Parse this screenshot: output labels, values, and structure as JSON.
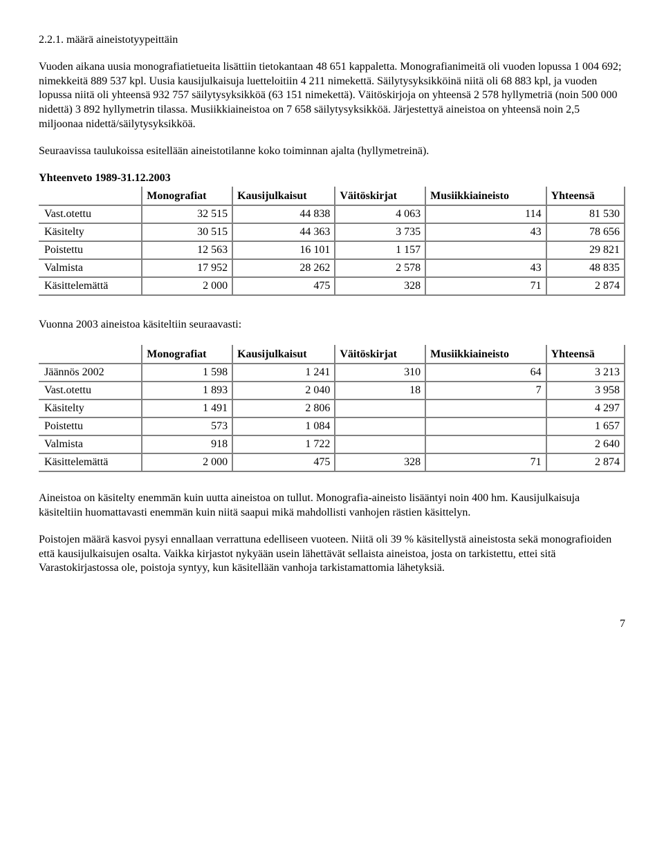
{
  "heading": "2.2.1. määrä aineistotyypeittäin",
  "para1": "Vuoden aikana uusia monografiatietueita lisättiin tietokantaan 48 651 kappaletta. Monografianimeitä oli vuoden lopussa 1 004 692; nimekkeitä 889 537 kpl. Uusia kausijulkaisuja luetteloitiin 4 211 nimekettä. Säilytysyksikköinä niitä oli 68 883 kpl, ja vuoden lopussa niitä oli yhteensä 932 757 säilytysyksikköä (63 151 nimekettä). Väitöskirjoja on yhteensä 2 578 hyllymetriä (noin 500 000 nidettä)  3 892 hyllymetrin tilassa. Musiikkiaineistoa on 7 658 säilytysyksikköä. Järjestettyä aineistoa on yhteensä noin 2,5 miljoonaa nidettä/säilytysyksikköä.",
  "para2": "Seuraavissa taulukoissa esitellään aineistotilanne koko toiminnan ajalta (hyllymetreinä).",
  "table1_title": "Yhteenveto 1989-31.12.2003",
  "headers": {
    "blank": "",
    "c1": "Monografiat",
    "c2": "Kausijulkaisut",
    "c3": "Väitöskirjat",
    "c4": "Musiikkiaineisto",
    "c5": "Yhteensä"
  },
  "table1": [
    {
      "label": "Vast.otettu",
      "v": [
        "32 515",
        "44 838",
        "4 063",
        "114",
        "81 530"
      ]
    },
    {
      "label": "Käsitelty",
      "v": [
        "30 515",
        "44 363",
        "3 735",
        "43",
        "78 656"
      ]
    },
    {
      "label": "Poistettu",
      "v": [
        "12 563",
        "16 101",
        "1 157",
        "",
        "29 821"
      ]
    },
    {
      "label": "Valmista",
      "v": [
        "17 952",
        "28 262",
        "2 578",
        "43",
        "48 835"
      ]
    },
    {
      "label": "Käsittelemättä",
      "v": [
        "2 000",
        "475",
        "328",
        "71",
        "2 874"
      ]
    }
  ],
  "para3": "Vuonna 2003 aineistoa käsiteltiin seuraavasti:",
  "table2": [
    {
      "label": "Jäännös 2002",
      "v": [
        "1 598",
        "1 241",
        "310",
        "64",
        "3 213"
      ]
    },
    {
      "label": "Vast.otettu",
      "v": [
        "1 893",
        "2 040",
        "18",
        "7",
        "3 958"
      ]
    },
    {
      "label": "Käsitelty",
      "v": [
        "1 491",
        "2 806",
        "",
        "",
        "4 297"
      ]
    },
    {
      "label": "Poistettu",
      "v": [
        "573",
        "1 084",
        "",
        "",
        "1 657"
      ]
    },
    {
      "label": "Valmista",
      "v": [
        "918",
        "1 722",
        "",
        "",
        "2 640"
      ]
    },
    {
      "label": "Käsittelemättä",
      "v": [
        "2 000",
        "475",
        "328",
        "71",
        "2 874"
      ]
    }
  ],
  "para4": "Aineistoa on käsitelty enemmän kuin uutta aineistoa on tullut. Monografia-aineisto lisääntyi noin 400 hm. Kausijulkaisuja käsiteltiin huomattavasti enemmän kuin niitä saapui mikä mahdollisti vanhojen rästien käsittelyn.",
  "para5": "Poistojen määrä kasvoi pysyi ennallaan verrattuna edelliseen vuoteen. Niitä oli 39 % käsitellystä aineistosta sekä monografioiden että kausijulkaisujen osalta. Vaikka kirjastot nykyään usein lähettävät sellaista aineistoa, josta on tarkistettu, ettei sitä Varastokirjastossa ole, poistoja syntyy, kun käsitellään vanhoja tarkistamattomia lähetyksiä.",
  "pageNumber": "7"
}
